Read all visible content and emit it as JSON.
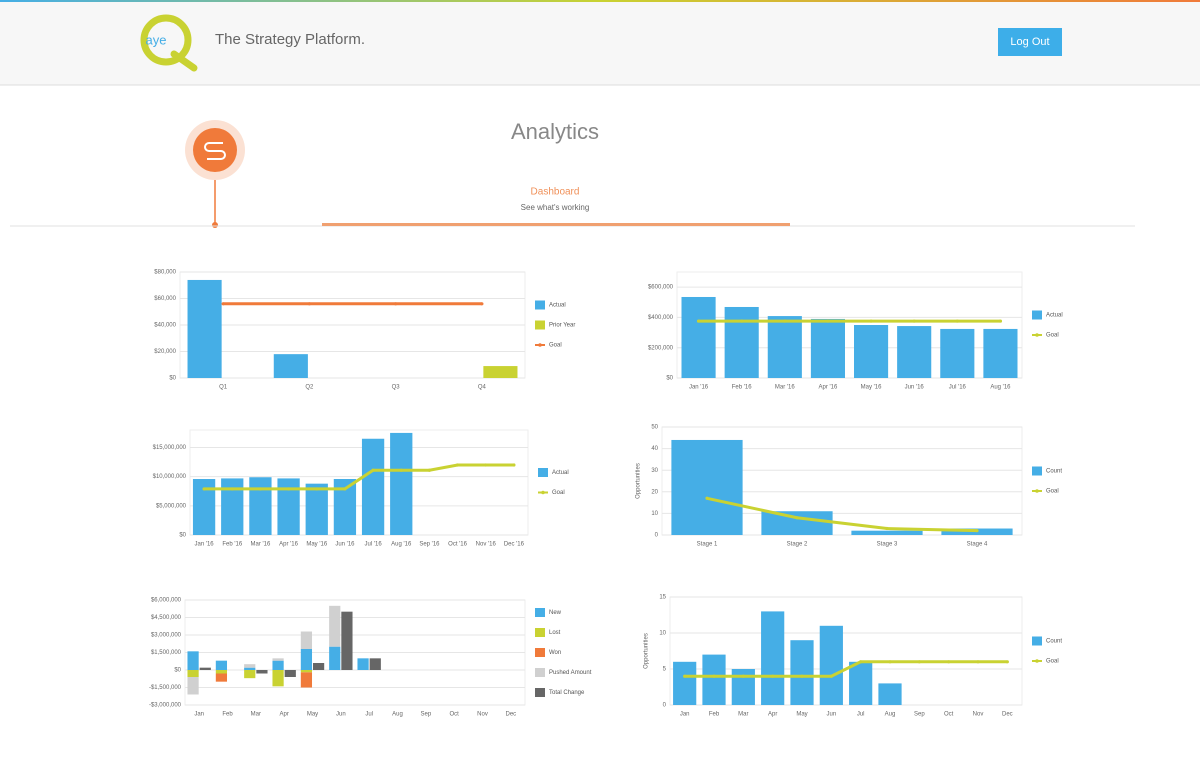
{
  "header": {
    "logo_text": "aye",
    "tagline": "The Strategy Platform.",
    "logout": "Log Out"
  },
  "page": {
    "title": "Analytics",
    "tab": "Dashboard",
    "tab_subtitle": "See what's working"
  },
  "chart_data": [
    {
      "type": "bar",
      "categories": [
        "Q1",
        "Q2",
        "Q3",
        "Q4"
      ],
      "series": [
        {
          "name": "Actual",
          "type": "bar",
          "color": "#45aee6",
          "values": [
            74000,
            18000,
            0,
            0
          ]
        },
        {
          "name": "Prior Year",
          "type": "bar",
          "color": "#c9d232",
          "values": [
            0,
            0,
            0,
            9000
          ]
        },
        {
          "name": "Goal",
          "type": "line",
          "color": "#f07a3a",
          "values": [
            56000,
            56000,
            56000,
            56000
          ]
        }
      ],
      "ylim": [
        0,
        80000
      ],
      "yticks": [
        {
          "value": 0,
          "label": "$0"
        },
        {
          "value": 20000,
          "label": "$20,000"
        },
        {
          "value": 40000,
          "label": "$40,000"
        },
        {
          "value": 60000,
          "label": "$60,000"
        },
        {
          "value": 80000,
          "label": "$80,000"
        }
      ],
      "grid": true
    },
    {
      "type": "bar",
      "categories": [
        "Jan '16",
        "Feb '16",
        "Mar '16",
        "Apr '16",
        "May '16",
        "Jun '16",
        "Jul '16",
        "Aug '16"
      ],
      "series": [
        {
          "name": "Actual",
          "type": "bar",
          "color": "#45aee6",
          "values": [
            535000,
            469000,
            409000,
            390000,
            350000,
            343000,
            324000,
            324000
          ]
        },
        {
          "name": "Goal",
          "type": "line",
          "color": "#c9d232",
          "values": [
            376000,
            376000,
            376000,
            376000,
            376000,
            376000,
            376000,
            376000
          ]
        }
      ],
      "ylim": [
        0,
        700000
      ],
      "yticks": [
        {
          "value": 0,
          "label": "$0"
        },
        {
          "value": 200000,
          "label": "$200,000"
        },
        {
          "value": 400000,
          "label": "$400,000"
        },
        {
          "value": 600000,
          "label": "$600,000"
        }
      ],
      "grid": true
    },
    {
      "type": "bar",
      "categories": [
        "Jan '16",
        "Feb '16",
        "Mar '16",
        "Apr '16",
        "May '16",
        "Jun '16",
        "Jul '16",
        "Aug '16",
        "Sep '16",
        "Oct '16",
        "Nov '16",
        "Dec '16"
      ],
      "series": [
        {
          "name": "Actual",
          "type": "bar",
          "color": "#45aee6",
          "values": [
            9600000,
            9700000,
            9900000,
            9700000,
            8800000,
            9600000,
            16500000,
            17500000,
            null,
            null,
            null,
            null
          ]
        },
        {
          "name": "Goal",
          "type": "line",
          "color": "#c9d232",
          "values": [
            7900000,
            7900000,
            7900000,
            7900000,
            7900000,
            7900000,
            11100000,
            11100000,
            11100000,
            12000000,
            12000000,
            12000000
          ]
        }
      ],
      "ylim": [
        0,
        18000000
      ],
      "yticks": [
        {
          "value": 0,
          "label": "$0"
        },
        {
          "value": 5000000,
          "label": "$5,000,000"
        },
        {
          "value": 10000000,
          "label": "$10,000,000"
        },
        {
          "value": 15000000,
          "label": "$15,000,000"
        }
      ],
      "grid": true
    },
    {
      "type": "bar",
      "y_label": "Opportunities",
      "categories": [
        "Stage 1",
        "Stage 2",
        "Stage 3",
        "Stage 4"
      ],
      "series": [
        {
          "name": "Count",
          "type": "bar",
          "color": "#45aee6",
          "values": [
            44,
            11,
            2,
            3
          ]
        },
        {
          "name": "Goal",
          "type": "line",
          "color": "#c9d232",
          "values": [
            17,
            8,
            3,
            2
          ]
        }
      ],
      "ylim": [
        0,
        50
      ],
      "yticks": [
        0,
        10,
        20,
        30,
        40,
        50
      ],
      "grid": true
    },
    {
      "type": "bar",
      "stacked": true,
      "categories": [
        "Jan",
        "Feb",
        "Mar",
        "Apr",
        "May",
        "Jun",
        "Jul",
        "Aug",
        "Sep",
        "Oct",
        "Nov",
        "Dec"
      ],
      "series": [
        {
          "name": "New",
          "type": "bar",
          "stack": 1,
          "color": "#45aee6",
          "values": [
            1600000,
            800000,
            200000,
            800000,
            1800000,
            2000000,
            1000000,
            0,
            0,
            0,
            0,
            0
          ]
        },
        {
          "name": "Lost",
          "type": "bar",
          "stack": 1,
          "color": "#c9d232",
          "values": [
            -600000,
            -300000,
            -700000,
            -1400000,
            -200000,
            0,
            0,
            0,
            0,
            0,
            0,
            0
          ]
        },
        {
          "name": "Won",
          "type": "bar",
          "stack": 1,
          "color": "#f07a3a",
          "values": [
            0,
            -700000,
            0,
            0,
            -1300000,
            0,
            0,
            0,
            0,
            0,
            0,
            0
          ]
        },
        {
          "name": "Pushed Amount",
          "type": "bar",
          "stack": 1,
          "color": "#d0d0d0",
          "values": [
            -1500000,
            0,
            300000,
            200000,
            1500000,
            3500000,
            0,
            0,
            0,
            0,
            0,
            0
          ]
        },
        {
          "name": "Total Change",
          "type": "bar",
          "stack": 2,
          "color": "#666666",
          "values": [
            200000,
            0,
            -300000,
            -600000,
            600000,
            5000000,
            1000000,
            0,
            0,
            0,
            0,
            0
          ]
        }
      ],
      "ylim": [
        -3000000,
        6000000
      ],
      "yticks": [
        {
          "value": -3000000,
          "label": "-$3,000,000"
        },
        {
          "value": -1500000,
          "label": "-$1,500,000"
        },
        {
          "value": 0,
          "label": "$0"
        },
        {
          "value": 1500000,
          "label": "$1,500,000"
        },
        {
          "value": 3000000,
          "label": "$3,000,000"
        },
        {
          "value": 4500000,
          "label": "$4,500,000"
        },
        {
          "value": 6000000,
          "label": "$6,000,000"
        }
      ],
      "grid": true
    },
    {
      "type": "bar",
      "y_label": "Opportunities",
      "categories": [
        "Jan",
        "Feb",
        "Mar",
        "Apr",
        "May",
        "Jun",
        "Jul",
        "Aug",
        "Sep",
        "Oct",
        "Nov",
        "Dec"
      ],
      "series": [
        {
          "name": "Count",
          "type": "bar",
          "color": "#45aee6",
          "values": [
            6,
            7,
            5,
            13,
            9,
            11,
            6,
            3,
            0,
            0,
            0,
            0
          ]
        },
        {
          "name": "Goal",
          "type": "line",
          "color": "#c9d232",
          "values": [
            4,
            4,
            4,
            4,
            4,
            4,
            6,
            6,
            6,
            6,
            6,
            6
          ]
        }
      ],
      "ylim": [
        0,
        15
      ],
      "yticks": [
        0,
        5,
        10,
        15
      ],
      "grid": true
    }
  ]
}
